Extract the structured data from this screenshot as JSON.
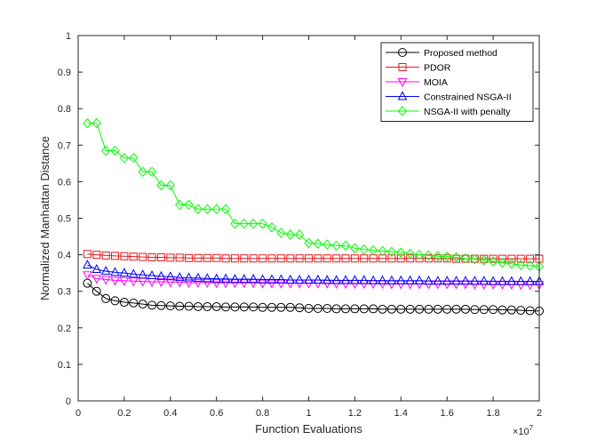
{
  "chart_data": {
    "type": "line",
    "xlabel": "Function Evaluations",
    "ylabel": "Normalized Manhattan Distance",
    "x_exponent_label": "×10",
    "x_exponent_power": "7",
    "xlim": [
      0,
      2
    ],
    "ylim": [
      0,
      1
    ],
    "x_ticks": [
      "0",
      "0.2",
      "0.4",
      "0.6",
      "0.8",
      "1",
      "1.2",
      "1.4",
      "1.6",
      "1.8",
      "2"
    ],
    "y_ticks": [
      "0",
      "0.1",
      "0.2",
      "0.3",
      "0.4",
      "0.5",
      "0.6",
      "0.7",
      "0.8",
      "0.9",
      "1"
    ],
    "grid": false,
    "legend_position": "top-right",
    "x": [
      0.04,
      0.08,
      0.12,
      0.16,
      0.2,
      0.24,
      0.28,
      0.32,
      0.36,
      0.4,
      0.44,
      0.48,
      0.52,
      0.56,
      0.6,
      0.64,
      0.68,
      0.72,
      0.76,
      0.8,
      0.84,
      0.88,
      0.92,
      0.96,
      1.0,
      1.04,
      1.08,
      1.12,
      1.16,
      1.2,
      1.24,
      1.28,
      1.32,
      1.36,
      1.4,
      1.44,
      1.48,
      1.52,
      1.56,
      1.6,
      1.64,
      1.68,
      1.72,
      1.76,
      1.8,
      1.84,
      1.88,
      1.92,
      1.96,
      2.0
    ],
    "series": [
      {
        "name": "Proposed method",
        "color": "#000000",
        "marker": "circle",
        "values": [
          0.322,
          0.3,
          0.28,
          0.274,
          0.27,
          0.268,
          0.265,
          0.262,
          0.261,
          0.26,
          0.259,
          0.259,
          0.258,
          0.258,
          0.258,
          0.257,
          0.257,
          0.257,
          0.257,
          0.256,
          0.256,
          0.256,
          0.256,
          0.255,
          0.253,
          0.253,
          0.253,
          0.252,
          0.252,
          0.252,
          0.252,
          0.252,
          0.251,
          0.251,
          0.251,
          0.251,
          0.251,
          0.251,
          0.251,
          0.251,
          0.251,
          0.251,
          0.25,
          0.25,
          0.25,
          0.249,
          0.249,
          0.248,
          0.247,
          0.246
        ]
      },
      {
        "name": "PDOR",
        "color": "#e8191d",
        "marker": "square",
        "values": [
          0.402,
          0.4,
          0.398,
          0.397,
          0.396,
          0.395,
          0.394,
          0.393,
          0.393,
          0.392,
          0.392,
          0.391,
          0.391,
          0.391,
          0.391,
          0.39,
          0.39,
          0.39,
          0.39,
          0.39,
          0.39,
          0.39,
          0.39,
          0.39,
          0.39,
          0.39,
          0.39,
          0.39,
          0.39,
          0.39,
          0.39,
          0.39,
          0.39,
          0.39,
          0.39,
          0.39,
          0.39,
          0.39,
          0.39,
          0.39,
          0.389,
          0.389,
          0.389,
          0.389,
          0.389,
          0.389,
          0.389,
          0.389,
          0.389,
          0.389
        ]
      },
      {
        "name": "MOIA",
        "color": "#ff00ff",
        "marker": "triangle-down",
        "values": [
          0.345,
          0.335,
          0.332,
          0.33,
          0.329,
          0.328,
          0.327,
          0.326,
          0.326,
          0.325,
          0.325,
          0.324,
          0.324,
          0.324,
          0.323,
          0.323,
          0.323,
          0.323,
          0.323,
          0.322,
          0.322,
          0.322,
          0.322,
          0.322,
          0.322,
          0.322,
          0.322,
          0.321,
          0.321,
          0.321,
          0.321,
          0.321,
          0.321,
          0.32,
          0.32,
          0.32,
          0.32,
          0.32,
          0.32,
          0.32,
          0.32,
          0.32,
          0.319,
          0.319,
          0.319,
          0.319,
          0.319,
          0.318,
          0.318,
          0.318
        ]
      },
      {
        "name": "Constrained NSGA-II",
        "color": "#0000ff",
        "marker": "triangle-up",
        "values": [
          0.372,
          0.36,
          0.355,
          0.352,
          0.35,
          0.347,
          0.345,
          0.343,
          0.341,
          0.34,
          0.338,
          0.337,
          0.336,
          0.335,
          0.334,
          0.334,
          0.333,
          0.333,
          0.333,
          0.332,
          0.332,
          0.332,
          0.331,
          0.331,
          0.331,
          0.331,
          0.33,
          0.33,
          0.33,
          0.33,
          0.33,
          0.329,
          0.329,
          0.329,
          0.329,
          0.329,
          0.329,
          0.328,
          0.328,
          0.328,
          0.328,
          0.328,
          0.328,
          0.328,
          0.327,
          0.327,
          0.327,
          0.327,
          0.327,
          0.327
        ]
      },
      {
        "name": "NSGA-II with penalty",
        "color": "#00ff00",
        "marker": "diamond",
        "values": [
          0.76,
          0.76,
          0.685,
          0.685,
          0.665,
          0.665,
          0.627,
          0.627,
          0.59,
          0.59,
          0.537,
          0.537,
          0.525,
          0.525,
          0.525,
          0.525,
          0.485,
          0.485,
          0.485,
          0.485,
          0.475,
          0.46,
          0.455,
          0.455,
          0.432,
          0.43,
          0.428,
          0.425,
          0.425,
          0.418,
          0.415,
          0.412,
          0.41,
          0.408,
          0.406,
          0.403,
          0.4,
          0.398,
          0.396,
          0.395,
          0.393,
          0.39,
          0.388,
          0.385,
          0.382,
          0.378,
          0.375,
          0.372,
          0.37,
          0.368
        ]
      }
    ]
  }
}
